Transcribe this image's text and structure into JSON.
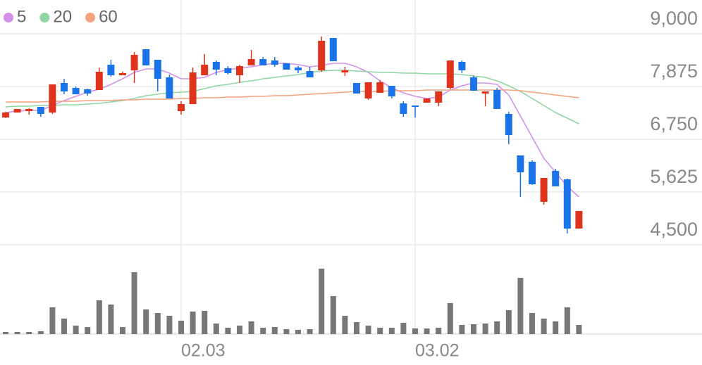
{
  "chart_data": {
    "type": "candlestick",
    "categories": [
      null,
      null,
      null,
      null,
      null,
      null,
      null,
      null,
      null,
      null,
      null,
      null,
      null,
      null,
      null,
      "02.03",
      null,
      null,
      null,
      null,
      null,
      null,
      null,
      null,
      null,
      null,
      null,
      null,
      null,
      null,
      null,
      null,
      null,
      null,
      null,
      "03.02",
      null,
      null,
      null,
      null,
      null,
      null,
      null,
      null,
      null,
      null,
      null,
      null,
      null,
      null
    ],
    "open": [
      7215,
      7320,
      7350,
      7440,
      7320,
      7950,
      7845,
      7815,
      7800,
      8340,
      8115,
      8220,
      8670,
      8445,
      8070,
      7350,
      7500,
      8115,
      8400,
      8265,
      8115,
      8325,
      8460,
      8430,
      8370,
      8280,
      8205,
      8220,
      8910,
      8175,
      7950,
      7620,
      7740,
      7890,
      7515,
      7470,
      7530,
      7530,
      7845,
      8400,
      8070,
      7725,
      7800,
      7290,
      6405,
      6270,
      5415,
      6075,
      5895,
      4845
    ],
    "high": [
      7335,
      7395,
      7410,
      7440,
      7920,
      8040,
      7875,
      7830,
      8280,
      8445,
      8190,
      8610,
      8670,
      8445,
      8130,
      7560,
      8280,
      8565,
      8430,
      8310,
      8340,
      8655,
      8505,
      8505,
      8370,
      8310,
      8295,
      8940,
      8910,
      8295,
      7950,
      7965,
      8010,
      7890,
      7560,
      7470,
      7620,
      7770,
      8430,
      8430,
      8100,
      7770,
      7845,
      7335,
      6405,
      6300,
      5925,
      6120,
      5910,
      5220
    ],
    "low": [
      7200,
      7320,
      7275,
      7230,
      7290,
      7710,
      7710,
      7680,
      7800,
      8085,
      8130,
      7950,
      8325,
      7770,
      7620,
      7275,
      7500,
      8115,
      8115,
      8130,
      7950,
      8325,
      8325,
      8295,
      8235,
      8160,
      8070,
      8190,
      8415,
      8100,
      7725,
      7590,
      7740,
      7620,
      7230,
      7215,
      7530,
      7455,
      7815,
      8160,
      7785,
      7455,
      7395,
      6645,
      5520,
      5775,
      5355,
      5745,
      4740,
      4845
    ],
    "close": [
      7320,
      7395,
      7395,
      7290,
      7920,
      7770,
      7710,
      7725,
      8190,
      8115,
      8160,
      8550,
      8325,
      8040,
      7620,
      7500,
      8175,
      8340,
      8235,
      8160,
      8310,
      8460,
      8325,
      8340,
      8235,
      8220,
      8070,
      8850,
      8415,
      8220,
      7725,
      7965,
      7965,
      7665,
      7290,
      7440,
      7620,
      7770,
      8430,
      8220,
      7785,
      7770,
      7395,
      6840,
      6045,
      5790,
      5925,
      5745,
      4845,
      5220
    ],
    "up_color": "#e0331c",
    "down_color": "#1a73e8",
    "series": [
      {
        "name": "5",
        "color": "#d391ea",
        "values": [
          7320,
          7350,
          7365,
          7365,
          7470,
          7575,
          7665,
          7755,
          7815,
          7920,
          8040,
          8175,
          8250,
          8250,
          8160,
          8040,
          8040,
          8070,
          8175,
          8235,
          8265,
          8295,
          8340,
          8370,
          8370,
          8340,
          8295,
          8325,
          8370,
          8370,
          8295,
          8175,
          7995,
          7845,
          7740,
          7665,
          7620,
          7650,
          7800,
          7890,
          7950,
          7950,
          7920,
          7695,
          7245,
          6795,
          6345,
          6045,
          5745,
          5520
        ]
      },
      {
        "name": "20",
        "color": "#8fd6a2",
        "values": [
          7440,
          7455,
          7455,
          7470,
          7470,
          7485,
          7485,
          7500,
          7515,
          7545,
          7575,
          7620,
          7680,
          7710,
          7740,
          7755,
          7770,
          7830,
          7890,
          7920,
          7965,
          7995,
          8040,
          8070,
          8100,
          8130,
          8175,
          8205,
          8220,
          8220,
          8205,
          8190,
          8175,
          8175,
          8160,
          8160,
          8145,
          8145,
          8145,
          8130,
          8100,
          8070,
          7995,
          7890,
          7770,
          7620,
          7470,
          7320,
          7200,
          7080
        ]
      },
      {
        "name": "60",
        "color": "#f3a27c",
        "values": [
          7545,
          7545,
          7545,
          7545,
          7560,
          7560,
          7560,
          7575,
          7575,
          7575,
          7590,
          7590,
          7605,
          7605,
          7605,
          7620,
          7620,
          7635,
          7635,
          7650,
          7650,
          7665,
          7665,
          7680,
          7680,
          7695,
          7710,
          7725,
          7740,
          7755,
          7770,
          7770,
          7770,
          7785,
          7785,
          7785,
          7800,
          7800,
          7800,
          7800,
          7800,
          7800,
          7800,
          7800,
          7785,
          7755,
          7725,
          7695,
          7665,
          7635
        ]
      }
    ],
    "ylim": [
      4500,
      9000
    ],
    "yticks": [
      {
        "value": 9000,
        "label": "9,000"
      },
      {
        "value": 7875,
        "label": "7,875"
      },
      {
        "value": 6750,
        "label": "6,750"
      },
      {
        "value": 5625,
        "label": "5,625"
      },
      {
        "value": 4500,
        "label": "4,500"
      }
    ],
    "grid": true,
    "volume": {
      "color": "#777777",
      "ylim": [
        0,
        100
      ],
      "values": [
        3,
        3,
        3,
        4,
        38,
        22,
        12,
        10,
        48,
        42,
        10,
        88,
        35,
        30,
        26,
        19,
        32,
        33,
        15,
        9,
        12,
        18,
        9,
        10,
        7,
        6,
        7,
        93,
        54,
        26,
        17,
        12,
        9,
        9,
        16,
        8,
        8,
        9,
        44,
        13,
        14,
        15,
        18,
        34,
        80,
        30,
        22,
        18,
        38,
        13
      ]
    }
  }
}
